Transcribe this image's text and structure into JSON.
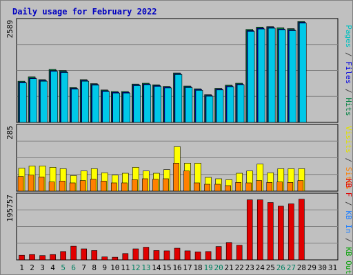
{
  "chart_data": {
    "type": "bar",
    "title": "Daily usage for February 2022",
    "categories": [
      "1",
      "2",
      "3",
      "4",
      "5",
      "6",
      "7",
      "8",
      "9",
      "10",
      "11",
      "12",
      "13",
      "14",
      "15",
      "16",
      "17",
      "18",
      "19",
      "20",
      "21",
      "22",
      "23",
      "24",
      "25",
      "26",
      "27",
      "28",
      "29",
      "30",
      "31"
    ],
    "weekend_days": [
      "5",
      "6",
      "12",
      "13",
      "19",
      "20",
      "26",
      "27"
    ],
    "grid": true,
    "panels": [
      {
        "name": "pages-files-hits",
        "ymax": 2589,
        "ymax_label": "2589",
        "side_label": [
          {
            "text": "Pages",
            "color": "#00c0c0"
          },
          {
            "text": " / ",
            "color": "#404040"
          },
          {
            "text": "Files",
            "color": "#0000e0"
          },
          {
            "text": " / ",
            "color": "#404040"
          },
          {
            "text": "Hits",
            "color": "#008040"
          }
        ],
        "series": [
          {
            "name": "Hits",
            "color": "#008040",
            "values": [
              1040,
              1150,
              1080,
              1340,
              1310,
              880,
              1080,
              980,
              820,
              780,
              780,
              970,
              990,
              950,
              910,
              1250,
              920,
              850,
              700,
              860,
              940,
              990,
              2350,
              2410,
              2420,
              2390,
              2370,
              2550
            ]
          },
          {
            "name": "Files",
            "color": "#0000e0",
            "values": [
              1020,
              1120,
              1060,
              1310,
              1280,
              860,
              1060,
              960,
              800,
              760,
              760,
              950,
              970,
              930,
              890,
              1230,
              900,
              830,
              680,
              840,
              920,
              970,
              2320,
              2380,
              2400,
              2360,
              2340,
              2530
            ]
          },
          {
            "name": "Pages",
            "color": "#00c8e8",
            "values": [
              1000,
              1100,
              1040,
              1290,
              1260,
              840,
              1040,
              940,
              780,
              740,
              740,
              930,
              950,
              910,
              870,
              1210,
              880,
              810,
              660,
              820,
              900,
              950,
              2300,
              2360,
              2380,
              2340,
              2320,
              2510
            ]
          }
        ]
      },
      {
        "name": "visits-sites",
        "ymax": 285,
        "ymax_label": "285",
        "side_label": [
          {
            "text": "Visits",
            "color": "#e0e000"
          },
          {
            "text": " / ",
            "color": "#404040"
          },
          {
            "text": "Sites",
            "color": "#ff8000"
          }
        ],
        "series": [
          {
            "name": "Visits",
            "color": "#ffff00",
            "values": [
              100,
              110,
              110,
              104,
              98,
              68,
              88,
              98,
              80,
              70,
              78,
              104,
              88,
              78,
              94,
              194,
              122,
              122,
              60,
              54,
              50,
              78,
              88,
              118,
              80,
              98,
              98,
              98
            ]
          },
          {
            "name": "Sites",
            "color": "#ff8000",
            "values": [
              64,
              70,
              62,
              40,
              44,
              36,
              46,
              52,
              44,
              36,
              36,
              50,
              54,
              52,
              54,
              122,
              88,
              36,
              30,
              30,
              24,
              38,
              36,
              46,
              38,
              40,
              38,
              46
            ]
          }
        ]
      },
      {
        "name": "kb-in-out-f",
        "ymax": 195757,
        "ymax_label": "195757",
        "side_label": [
          {
            "text": "KB F",
            "color": "#e00000"
          },
          {
            "text": " / ",
            "color": "#404040"
          },
          {
            "text": "KB In",
            "color": "#2080ff"
          },
          {
            "text": " / ",
            "color": "#404040"
          },
          {
            "text": "KB Out",
            "color": "#00a000"
          }
        ],
        "series": [
          {
            "name": "KB F",
            "color": "#e00000",
            "values": [
              14000,
              16000,
              13000,
              16000,
              25000,
              41000,
              33000,
              28000,
              9000,
              8000,
              19000,
              33000,
              38000,
              28000,
              27000,
              35000,
              27000,
              24000,
              25000,
              40000,
              52000,
              44000,
              180000,
              180000,
              172000,
              161000,
              168000,
              182000
            ]
          }
        ]
      }
    ]
  }
}
